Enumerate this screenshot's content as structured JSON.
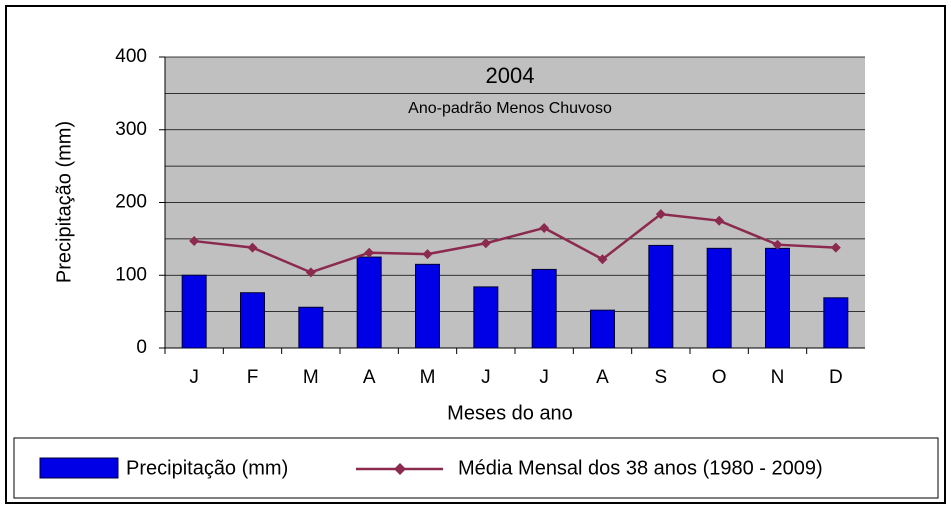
{
  "chart_data": {
    "type": "bar-line",
    "title": "2004",
    "subtitle": "Ano-padrão Menos Chuvoso",
    "y_label": "Precipitação (mm)",
    "x_label": "Meses do ano",
    "categories": [
      "J",
      "F",
      "M",
      "A",
      "M",
      "J",
      "J",
      "A",
      "S",
      "O",
      "N",
      "D"
    ],
    "series": [
      {
        "name": "Precipitação (mm)",
        "type": "bar",
        "color": "#0000e6",
        "values": [
          100,
          76,
          56,
          125,
          115,
          84,
          108,
          52,
          141,
          137,
          137,
          69
        ]
      },
      {
        "name": "Média Mensal dos 38 anos (1980 - 2009)",
        "type": "line",
        "color": "#8b2a4e",
        "values": [
          147,
          138,
          104,
          131,
          129,
          144,
          165,
          122,
          184,
          175,
          142,
          138
        ]
      }
    ],
    "ylim": [
      0,
      400
    ],
    "yticks": [
      0,
      100,
      200,
      300,
      400
    ],
    "grid": true,
    "plot_background": "#c0c0c0",
    "legend": "bottom"
  }
}
